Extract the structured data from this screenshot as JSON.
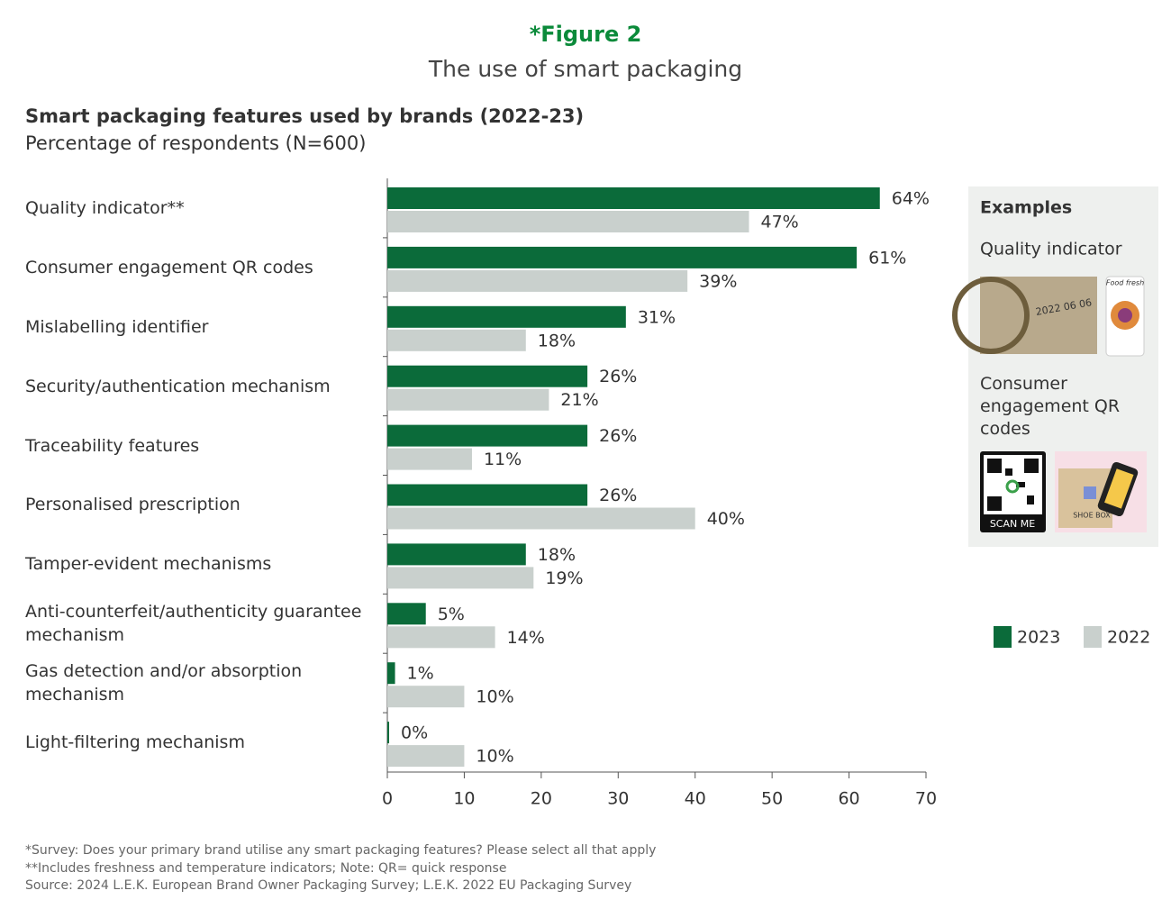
{
  "figure_label": "*Figure 2",
  "figure_title": "The use of smart packaging",
  "chart_data": {
    "type": "hbar",
    "title": "Smart packaging features used by brands (2022-23)",
    "subtitle": "Percentage of respondents (N=600)",
    "categories": [
      "Quality indicator**",
      "Consumer engagement QR codes",
      "Mislabelling identifier",
      "Security/authentication mechanism",
      "Traceability features",
      "Personalised prescription",
      "Tamper-evident mechanisms",
      "Anti-counterfeit/authenticity guarantee mechanism",
      "Gas detection and/or absorption mechanism",
      "Light-filtering mechanism"
    ],
    "series": [
      {
        "name": "2023",
        "color": "#0b6b3a",
        "values": [
          64,
          61,
          31,
          26,
          26,
          26,
          18,
          5,
          1,
          0
        ],
        "value_labels": [
          "64%",
          "61%",
          "31%",
          "26%",
          "26%",
          "26%",
          "18%",
          "5%",
          "1%",
          "0%"
        ]
      },
      {
        "name": "2022",
        "color": "#c9d0cd",
        "values": [
          47,
          39,
          18,
          21,
          11,
          40,
          19,
          14,
          10,
          10
        ],
        "value_labels": [
          "47%",
          "39%",
          "18%",
          "21%",
          "11%",
          "40%",
          "19%",
          "14%",
          "10%",
          "10%"
        ]
      }
    ],
    "xlim": [
      0,
      70
    ],
    "xticks": [
      0,
      10,
      20,
      30,
      40,
      50,
      60,
      70
    ],
    "legend": "right"
  },
  "examples": {
    "title": "Examples",
    "items": [
      {
        "label": "Quality indicator",
        "image_texts": [
          "Food fresh"
        ]
      },
      {
        "label": "Consumer engagement QR codes",
        "image_texts": [
          "SCAN ME",
          "SHOE BOX"
        ]
      }
    ]
  },
  "footnotes": [
    "*Survey: Does your primary brand utilise any smart packaging features? Please select all that apply",
    "**Includes freshness and temperature indicators; Note: QR= quick response",
    "Source: 2024 L.E.K. European Brand Owner Packaging Survey; L.E.K. 2022 EU Packaging Survey"
  ]
}
